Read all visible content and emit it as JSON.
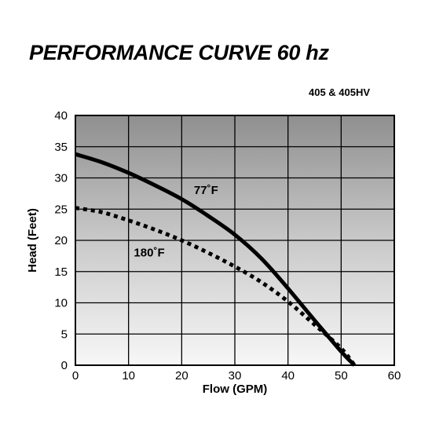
{
  "header": {
    "title": "PERFORMANCE CURVE 60 hz",
    "model": "405 & 405HV"
  },
  "chart_data": {
    "type": "line",
    "title": "PERFORMANCE CURVE 60 hz",
    "subtitle": "405 & 405HV",
    "xlabel": "Flow (GPM)",
    "ylabel": "Head (Feet)",
    "xlim": [
      0,
      60
    ],
    "ylim": [
      0,
      40
    ],
    "xticks": [
      "0",
      "10",
      "20",
      "30",
      "40",
      "50",
      "60"
    ],
    "yticks": [
      "0",
      "5",
      "10",
      "15",
      "20",
      "25",
      "30",
      "35",
      "40"
    ],
    "grid": true,
    "series": [
      {
        "name": "77˚F",
        "style": "solid",
        "color": "#000000",
        "x": [
          0,
          5,
          10,
          15,
          20,
          25,
          30,
          35,
          40,
          45,
          50,
          52.5
        ],
        "y": [
          33.8,
          32.5,
          30.8,
          28.8,
          26.6,
          23.9,
          20.9,
          17.1,
          12.3,
          7.2,
          2.2,
          0
        ]
      },
      {
        "name": "180˚F",
        "style": "dotted",
        "color": "#000000",
        "x": [
          0,
          5,
          10,
          15,
          20,
          25,
          30,
          35,
          40,
          45,
          50,
          52.5
        ],
        "y": [
          25.2,
          24.5,
          23.2,
          21.7,
          20.0,
          18.0,
          15.8,
          13.3,
          10.2,
          6.5,
          2.7,
          0
        ]
      }
    ],
    "annotations": [
      {
        "text": "77˚F",
        "x": 22.3,
        "y": 27.4
      },
      {
        "text": "180˚F",
        "x": 11.0,
        "y": 17.4
      }
    ]
  }
}
